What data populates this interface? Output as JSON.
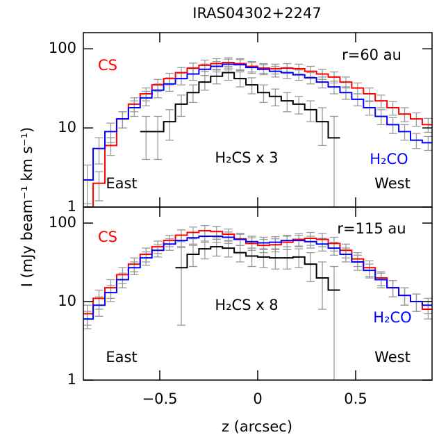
{
  "chart_data": [
    {
      "type": "step",
      "title": "IRAS04302+2247",
      "y_label": "I (mJy beam⁻¹ km s⁻¹)",
      "log_y": true,
      "xlim": [
        -0.89,
        0.89
      ],
      "ylim": [
        1,
        160
      ],
      "yticks": [
        1,
        10,
        100
      ],
      "x": [
        -0.87,
        -0.81,
        -0.75,
        -0.69,
        -0.63,
        -0.57,
        -0.51,
        -0.45,
        -0.39,
        -0.33,
        -0.27,
        -0.21,
        -0.15,
        -0.09,
        -0.03,
        0.03,
        0.09,
        0.15,
        0.21,
        0.27,
        0.33,
        0.39,
        0.45,
        0.51,
        0.57,
        0.63,
        0.69,
        0.75,
        0.81,
        0.87
      ],
      "series": [
        {
          "name": "CS",
          "color": "#ff0000",
          "values": [
            0.7,
            2,
            6,
            13,
            20,
            27,
            35,
            42,
            50,
            57,
            62,
            65,
            67,
            65,
            60,
            57,
            56,
            57,
            56,
            52,
            48,
            44,
            38,
            32,
            27,
            22,
            18,
            15,
            13,
            11
          ],
          "errors": [
            0.4,
            0.8,
            1.5,
            3,
            4,
            5,
            6,
            7,
            8,
            9,
            10,
            10,
            10,
            10,
            9,
            8,
            8,
            8,
            8,
            8,
            7,
            7,
            6,
            5,
            5,
            4,
            3.5,
            3,
            2.5,
            2.2
          ]
        },
        {
          "name": "H₂CO",
          "color": "#0000ff",
          "values": [
            2.2,
            5.5,
            9,
            13,
            18,
            24,
            30,
            36,
            42,
            48,
            55,
            60,
            64,
            63,
            58,
            55,
            52,
            50,
            47,
            43,
            38,
            33,
            28,
            23,
            18,
            14,
            11,
            9,
            7,
            6.5
          ],
          "errors": [
            1.2,
            2,
            2.5,
            3,
            4,
            5,
            6,
            7,
            7,
            8,
            9,
            9,
            10,
            10,
            9,
            8,
            8,
            8,
            7,
            7,
            6,
            6,
            5,
            4,
            3.5,
            3,
            2.5,
            2,
            1.5,
            1.3
          ]
        },
        {
          "name": "H₂CS x 3",
          "color": "#000000",
          "values": [
            null,
            null,
            null,
            null,
            null,
            9,
            9,
            12,
            20,
            28,
            38,
            45,
            50,
            42,
            35,
            28,
            25,
            22,
            20,
            17,
            12,
            7.5,
            null,
            null,
            null,
            null,
            null,
            null,
            null,
            null
          ],
          "errors": [
            null,
            null,
            null,
            null,
            null,
            5,
            5,
            5,
            6,
            7,
            8,
            9,
            10,
            9,
            8,
            7,
            6,
            6,
            5,
            5,
            6,
            6.5,
            null,
            null,
            null,
            null,
            null,
            null,
            null,
            null
          ]
        }
      ],
      "annotations": [
        "r=60 au",
        "East",
        "West"
      ]
    },
    {
      "type": "step",
      "x_label": "z (arcsec)",
      "log_y": true,
      "xlim": [
        -0.89,
        0.89
      ],
      "ylim": [
        1,
        160
      ],
      "yticks": [
        1,
        10,
        100
      ],
      "xticks": [
        {
          "value": -0.5,
          "label": "−0.5"
        },
        0,
        0.5
      ],
      "x": [
        -0.87,
        -0.81,
        -0.75,
        -0.69,
        -0.63,
        -0.57,
        -0.51,
        -0.45,
        -0.39,
        -0.33,
        -0.27,
        -0.21,
        -0.15,
        -0.09,
        -0.03,
        0.03,
        0.09,
        0.15,
        0.21,
        0.27,
        0.33,
        0.39,
        0.45,
        0.51,
        0.57,
        0.63,
        0.69,
        0.75,
        0.81,
        0.87
      ],
      "series": [
        {
          "name": "CS",
          "color": "#ff0000",
          "values": [
            7,
            11,
            15,
            22,
            30,
            40,
            50,
            60,
            70,
            76,
            80,
            78,
            72,
            63,
            55,
            52,
            53,
            57,
            62,
            64,
            62,
            55,
            45,
            35,
            27,
            20,
            15,
            12,
            10,
            8
          ],
          "errors": [
            2,
            3,
            4,
            5,
            6,
            8,
            9,
            10,
            12,
            13,
            13,
            13,
            12,
            11,
            10,
            10,
            10,
            11,
            11,
            12,
            12,
            11,
            9,
            7,
            6,
            4,
            3.5,
            3,
            2.5,
            2
          ]
        },
        {
          "name": "H₂CO",
          "color": "#0000ff",
          "values": [
            6,
            9,
            13,
            19,
            27,
            36,
            45,
            54,
            60,
            65,
            68,
            68,
            66,
            62,
            58,
            56,
            57,
            60,
            60,
            58,
            54,
            48,
            40,
            32,
            25,
            19,
            15,
            12,
            10,
            9
          ],
          "errors": [
            1.5,
            2.5,
            3,
            4,
            5,
            7,
            8,
            9,
            10,
            11,
            11,
            11,
            11,
            10,
            10,
            10,
            10,
            10,
            10,
            10,
            10,
            9,
            8,
            7,
            5,
            4,
            3.5,
            3,
            2.5,
            2
          ]
        },
        {
          "name": "H₂CS x 8",
          "color": "#000000",
          "values": [
            null,
            null,
            null,
            null,
            null,
            null,
            null,
            null,
            27,
            40,
            47,
            50,
            48,
            42,
            38,
            37,
            36,
            36,
            37,
            30,
            20,
            14,
            null,
            null,
            null,
            null,
            null,
            null,
            null,
            null
          ],
          "errors": [
            null,
            null,
            null,
            null,
            null,
            null,
            null,
            null,
            22,
            12,
            12,
            12,
            11,
            10,
            10,
            10,
            10,
            10,
            10,
            12,
            12,
            14,
            null,
            null,
            null,
            null,
            null,
            null,
            null,
            null
          ]
        }
      ],
      "annotations": [
        "r=115 au",
        "East",
        "West"
      ]
    }
  ]
}
